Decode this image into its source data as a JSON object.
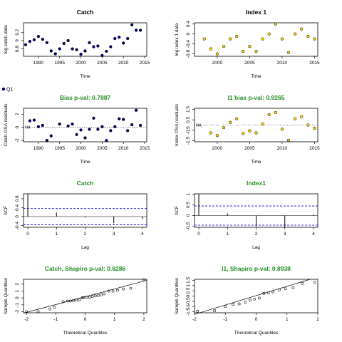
{
  "colors": {
    "navy": "#000080",
    "gold": "#ffd700",
    "green": "#228b22",
    "ref": "#0000cc",
    "ink": "#000000"
  },
  "legend_label": "Q1",
  "na_label": "NA",
  "chart_data": [
    {
      "id": "catch",
      "type": "scatter",
      "title": "Catch",
      "title_color": "black",
      "xlabel": "Time",
      "ylabel": "log catch data",
      "xlim": [
        1986.5,
        2015.5
      ],
      "ylim": [
        8.62,
        9.43
      ],
      "xticks": [
        1990,
        1995,
        2000,
        2005,
        2010,
        2015
      ],
      "yticks": [
        8.8,
        9.0,
        9.2
      ],
      "marker": "navy",
      "x": [
        1987,
        1988,
        1989,
        1990,
        1991,
        1992,
        1993,
        1994,
        1995,
        1996,
        1997,
        1998,
        1999,
        2000,
        2001,
        2002,
        2003,
        2004,
        2005,
        2006,
        2007,
        2008,
        2009,
        2010,
        2011,
        2012,
        2013,
        2014
      ],
      "y": [
        8.9,
        8.98,
        9.02,
        9.1,
        9.03,
        8.95,
        8.75,
        8.68,
        8.8,
        8.93,
        9.0,
        8.8,
        8.78,
        8.67,
        8.75,
        8.95,
        8.85,
        8.87,
        8.64,
        8.74,
        8.85,
        9.05,
        9.08,
        8.94,
        9.05,
        9.38,
        9.25,
        9.25
      ]
    },
    {
      "id": "index1",
      "type": "scatter",
      "title": "Index 1",
      "title_color": "black",
      "xlabel": "Time",
      "ylabel": "log index 1 data",
      "xlim": [
        1996.5,
        2015.5
      ],
      "ylim": [
        -0.9,
        0.45
      ],
      "xticks": [
        2000,
        2005,
        2010,
        2015
      ],
      "yticks": [
        -0.8,
        -0.4,
        0.0,
        0.4
      ],
      "marker": "gold",
      "x": [
        1998,
        1999,
        2000,
        2001,
        2002,
        2003,
        2004,
        2005,
        2006,
        2007,
        2008,
        2009,
        2010,
        2011,
        2012,
        2013,
        2014,
        2015
      ],
      "y": [
        -0.2,
        -0.6,
        -0.8,
        -0.5,
        -0.2,
        -0.1,
        -0.7,
        -0.5,
        -0.7,
        -0.2,
        0.0,
        0.4,
        -0.2,
        -0.75,
        0.0,
        0.2,
        -0.1,
        -0.2
      ]
    },
    {
      "id": "bias-catch",
      "type": "scatter",
      "title": "Bias p-val: 0.7887",
      "title_color": "green",
      "xlabel": "Time",
      "ylabel": "Catch OSA residuals",
      "xlim": [
        1986.5,
        2015.5
      ],
      "ylim": [
        -2.2,
        2.9
      ],
      "xticks": [
        1990,
        1995,
        2000,
        2005,
        2010,
        2015
      ],
      "yticks": [
        -2,
        0,
        2
      ],
      "marker": "navy",
      "zero_line": true,
      "na_label": true,
      "x": [
        1988,
        1989,
        1990,
        1991,
        1992,
        1993,
        1995,
        1997,
        1998,
        1999,
        2000,
        2001,
        2002,
        2003,
        2004,
        2005,
        2006,
        2007,
        2008,
        2009,
        2010,
        2011,
        2012,
        2013,
        2014
      ],
      "y": [
        1.0,
        1.1,
        0.1,
        0.3,
        -2.0,
        -1.3,
        0.5,
        0.2,
        0.5,
        -1.1,
        -0.4,
        -1.6,
        -0.3,
        1.4,
        -0.3,
        0.1,
        -2.0,
        -0.5,
        0.1,
        1.3,
        1.2,
        -0.5,
        0.4,
        2.6,
        0.3
      ]
    },
    {
      "id": "bias-index1",
      "type": "scatter",
      "title": "I1 bias p-val: 0.9265",
      "title_color": "green",
      "xlabel": "Time",
      "ylabel": "Index OSA residuals",
      "xlim": [
        1996.5,
        2015.5
      ],
      "ylim": [
        -1.6,
        1.6
      ],
      "xticks": [
        2000,
        2005,
        2010,
        2015
      ],
      "yticks": [
        -1.5,
        -0.5,
        0.5,
        1.5
      ],
      "marker": "gold",
      "zero_line": true,
      "na_label": true,
      "x": [
        1999,
        2000,
        2001,
        2002,
        2003,
        2004,
        2005,
        2006,
        2007,
        2008,
        2009,
        2010,
        2011,
        2012,
        2013,
        2014,
        2015
      ],
      "y": [
        -0.75,
        -1.0,
        -0.25,
        0.25,
        0.6,
        -0.8,
        -0.55,
        -0.75,
        0.1,
        1.0,
        1.2,
        -0.4,
        -1.45,
        0.6,
        0.8,
        0.0,
        -0.3
      ]
    },
    {
      "id": "acf-catch",
      "type": "bar",
      "subtype": "acf",
      "title": "Catch",
      "title_color": "green",
      "xlabel": "Lag",
      "ylabel": "ACF",
      "xlim": [
        -0.15,
        4.15
      ],
      "ylim": [
        -0.48,
        1.02
      ],
      "xticks": [
        0,
        1,
        2,
        3,
        4
      ],
      "yticks": [
        -0.4,
        0.0,
        0.4,
        0.8
      ],
      "lags": [
        0,
        1,
        2,
        3,
        4
      ],
      "values": [
        1.0,
        0.18,
        -0.05,
        -0.3,
        -0.1
      ],
      "ci": [
        0.37,
        -0.37
      ]
    },
    {
      "id": "acf-index1",
      "type": "bar",
      "subtype": "acf",
      "title": "Index1",
      "title_color": "green",
      "xlabel": "Lag",
      "ylabel": "ACF",
      "xlim": [
        -0.15,
        4.15
      ],
      "ylim": [
        -0.55,
        1.02
      ],
      "xticks": [
        0,
        1,
        2,
        3,
        4
      ],
      "yticks": [
        -0.5,
        0.0,
        0.5,
        1.0
      ],
      "lags": [
        0,
        1,
        2,
        3,
        4
      ],
      "values": [
        1.0,
        0.1,
        -0.5,
        -0.55,
        0.05
      ],
      "ci": [
        0.45,
        -0.45
      ]
    },
    {
      "id": "qq-catch",
      "type": "scatter",
      "subtype": "qq",
      "title": "Catch, Shapiro p-val: 0.8286",
      "title_color": "green",
      "xlabel": "Theoretical Quantiles",
      "ylabel": "Sample Quantiles",
      "xlim": [
        -2.1,
        2.1
      ],
      "ylim": [
        -2.15,
        2.7
      ],
      "xticks": [
        -2,
        -1,
        0,
        1,
        2
      ],
      "yticks": [
        -2,
        -1,
        0,
        1,
        2
      ],
      "x": [
        -2.0,
        -1.6,
        -1.2,
        -1.05,
        -0.75,
        -0.6,
        -0.5,
        -0.4,
        -0.3,
        -0.2,
        -0.1,
        -0.05,
        0.05,
        0.15,
        0.25,
        0.35,
        0.45,
        0.55,
        0.65,
        0.8,
        0.95,
        1.1,
        1.3,
        1.55,
        2.0
      ],
      "y": [
        -2.0,
        -2.0,
        -1.6,
        -1.35,
        -0.55,
        -0.45,
        -0.45,
        -0.4,
        -0.3,
        -0.3,
        0.0,
        0.05,
        0.1,
        0.1,
        0.2,
        0.3,
        0.35,
        0.45,
        0.6,
        1.0,
        1.0,
        1.1,
        1.3,
        1.4,
        2.65
      ],
      "line": {
        "x": [
          -2.1,
          2.1
        ],
        "y": [
          -2.2,
          2.55
        ]
      }
    },
    {
      "id": "qq-index1",
      "type": "scatter",
      "subtype": "qq",
      "title": "I1, Shapiro p-val: 0.8938",
      "title_color": "green",
      "xlabel": "Theoretical Quantiles",
      "ylabel": "Sample Quantiles",
      "xlim": [
        -2.0,
        2.0
      ],
      "ylim": [
        -1.6,
        1.6
      ],
      "xticks": [
        -2,
        -1,
        0,
        1,
        2
      ],
      "yticks": [
        -1.5,
        -1.0,
        -0.5,
        0.0,
        0.5,
        1.0,
        1.5
      ],
      "x": [
        -1.9,
        -1.35,
        -1.0,
        -0.75,
        -0.55,
        -0.35,
        -0.2,
        -0.05,
        0.1,
        0.25,
        0.4,
        0.55,
        0.75,
        0.95,
        1.2,
        1.5,
        1.9
      ],
      "y": [
        -1.45,
        -1.4,
        -1.0,
        -0.8,
        -0.75,
        -0.6,
        -0.4,
        -0.3,
        -0.2,
        0.25,
        0.3,
        0.4,
        0.6,
        0.7,
        0.8,
        1.2,
        1.3
      ],
      "line": {
        "x": [
          -2.0,
          1.75
        ],
        "y": [
          -1.75,
          1.6
        ]
      }
    }
  ]
}
